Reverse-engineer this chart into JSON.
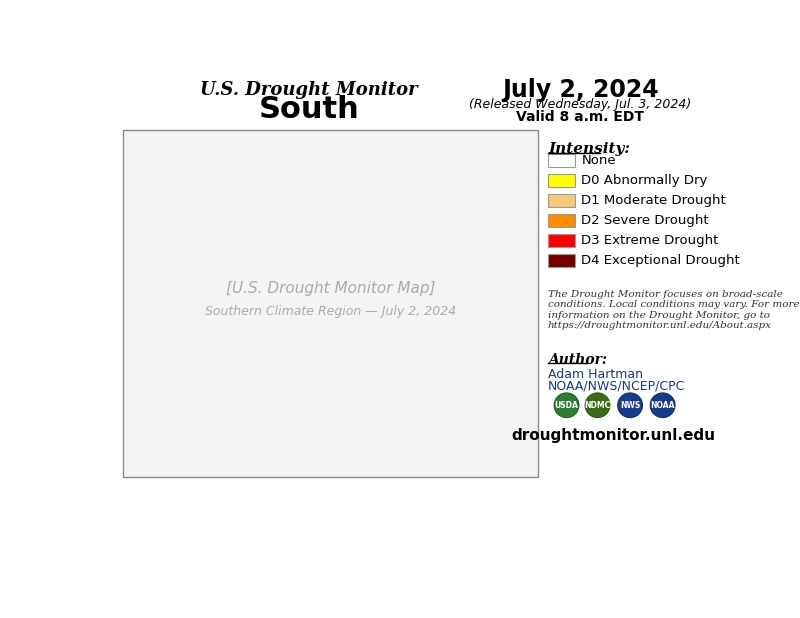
{
  "title_line1": "U.S. Drought Monitor",
  "title_line2": "South",
  "date_line1": "July 2, 2024",
  "date_line2": "(Released Wednesday, Jul. 3, 2024)",
  "date_line3": "Valid 8 a.m. EDT",
  "intensity_label": "Intensity:",
  "legend_items": [
    {
      "color": "#FFFFFF",
      "label": "None",
      "edgecolor": "#999999"
    },
    {
      "color": "#FFFF00",
      "label": "D0 Abnormally Dry",
      "edgecolor": "#999999"
    },
    {
      "color": "#F5C97A",
      "label": "D1 Moderate Drought",
      "edgecolor": "#999999"
    },
    {
      "color": "#FF8C00",
      "label": "D2 Severe Drought",
      "edgecolor": "#999999"
    },
    {
      "color": "#FF0000",
      "label": "D3 Extreme Drought",
      "edgecolor": "#999999"
    },
    {
      "color": "#720000",
      "label": "D4 Exceptional Drought",
      "edgecolor": "#999999"
    }
  ],
  "disclaimer_text": "The Drought Monitor focuses on broad-scale\nconditions. Local conditions may vary. For more\ninformation on the Drought Monitor, go to\nhttps://droughtmonitor.unl.edu/About.aspx",
  "author_label": "Author:",
  "author_name": "Adam Hartman",
  "author_org": "NOAA/NWS/NCEP/CPC",
  "website": "droughtmonitor.unl.edu",
  "background_color": "#FFFFFF",
  "text_color": "#000000",
  "accent_color": "#1A3A6B"
}
